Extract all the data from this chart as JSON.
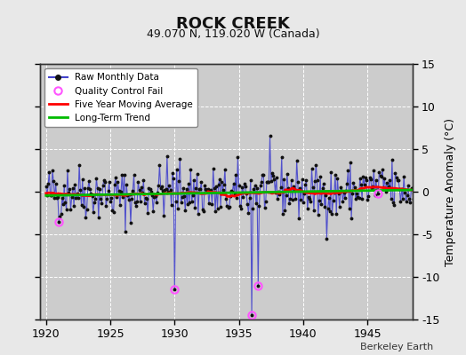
{
  "title": "ROCK CREEK",
  "subtitle": "49.070 N, 119.020 W (Canada)",
  "ylabel": "Temperature Anomaly (°C)",
  "credit": "Berkeley Earth",
  "xlim": [
    1919.5,
    1948.5
  ],
  "ylim": [
    -15,
    15
  ],
  "yticks": [
    -15,
    -10,
    -5,
    0,
    5,
    10,
    15
  ],
  "xticks": [
    1920,
    1925,
    1930,
    1935,
    1940,
    1945
  ],
  "bg_color": "#e8e8e8",
  "plot_bg_color": "#cccccc",
  "grid_color": "#ffffff",
  "raw_line_color": "#4444cc",
  "raw_marker_color": "#111111",
  "moving_avg_color": "#ff0000",
  "trend_color": "#00bb00",
  "qc_fail_color": "#ff55ff",
  "seed": 42,
  "qc_fail_times": [
    1921.0,
    1930.0,
    1936.0,
    1936.5,
    1945.83
  ],
  "qc_fail_values": [
    -3.5,
    -11.5,
    -14.5,
    -11.0,
    -0.2
  ]
}
